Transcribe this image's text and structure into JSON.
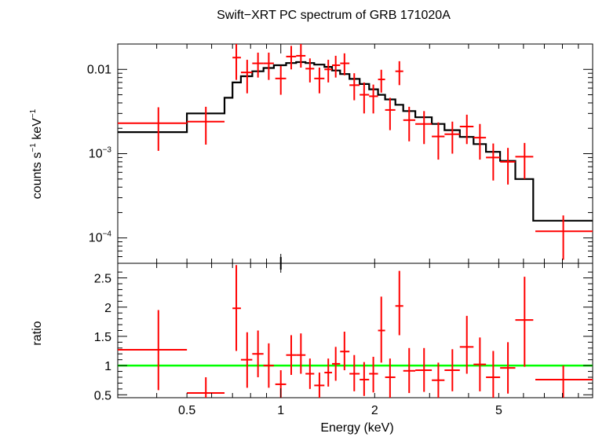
{
  "title": "Swift−XRT PC spectrum of GRB 171020A",
  "colors": {
    "data": "#ff0000",
    "model": "#000000",
    "unity": "#00ff00",
    "frame": "#000000"
  },
  "chart_data": [
    {
      "type": "scatter",
      "panel": "spectrum",
      "title": "Swift−XRT PC spectrum of GRB 171020A",
      "ylabel_main": "counts s",
      "ylabel_exp": "−1",
      "ylabel_mid": " keV",
      "ylabel_exp2": "−1",
      "xscale": "log",
      "yscale": "log",
      "xlim": [
        0.3,
        10.0
      ],
      "ylim": [
        5e-05,
        0.02
      ],
      "yticks": [
        {
          "value": 0.01,
          "base": "0.01",
          "exp": ""
        },
        {
          "value": 0.001,
          "base": "10",
          "exp": "−3"
        },
        {
          "value": 0.0001,
          "base": "10",
          "exp": "−4"
        }
      ],
      "series": [
        {
          "kind": "data-with-errors",
          "points": [
            {
              "x": 0.405,
              "xlo": 0.3,
              "xhi": 0.5,
              "y": 0.0023,
              "ylo": 0.00108,
              "yhi": 0.00355
            },
            {
              "x": 0.575,
              "xlo": 0.5,
              "xhi": 0.66,
              "y": 0.0024,
              "ylo": 0.00128,
              "yhi": 0.0036
            },
            {
              "x": 0.72,
              "xlo": 0.7,
              "xhi": 0.745,
              "y": 0.0138,
              "ylo": 0.0075,
              "yhi": 0.02
            },
            {
              "x": 0.78,
              "xlo": 0.745,
              "xhi": 0.81,
              "y": 0.0092,
              "ylo": 0.0052,
              "yhi": 0.013
            },
            {
              "x": 0.845,
              "xlo": 0.81,
              "xhi": 0.88,
              "y": 0.0118,
              "ylo": 0.008,
              "yhi": 0.0158
            },
            {
              "x": 0.915,
              "xlo": 0.88,
              "xhi": 0.95,
              "y": 0.0118,
              "ylo": 0.0075,
              "yhi": 0.0158
            },
            {
              "x": 1.0,
              "xlo": 0.96,
              "xhi": 1.04,
              "y": 0.0078,
              "ylo": 0.005,
              "yhi": 0.011
            },
            {
              "x": 1.08,
              "xlo": 1.04,
              "xhi": 1.12,
              "y": 0.0142,
              "ylo": 0.01,
              "yhi": 0.019
            },
            {
              "x": 1.16,
              "xlo": 1.12,
              "xhi": 1.2,
              "y": 0.0145,
              "ylo": 0.0105,
              "yhi": 0.02
            },
            {
              "x": 1.24,
              "xlo": 1.2,
              "xhi": 1.28,
              "y": 0.0102,
              "ylo": 0.007,
              "yhi": 0.0135
            },
            {
              "x": 1.33,
              "xlo": 1.28,
              "xhi": 1.38,
              "y": 0.0078,
              "ylo": 0.0052,
              "yhi": 0.0105
            },
            {
              "x": 1.42,
              "xlo": 1.38,
              "xhi": 1.46,
              "y": 0.01,
              "ylo": 0.007,
              "yhi": 0.013
            },
            {
              "x": 1.5,
              "xlo": 1.46,
              "xhi": 1.55,
              "y": 0.0112,
              "ylo": 0.008,
              "yhi": 0.0145
            },
            {
              "x": 1.6,
              "xlo": 1.55,
              "xhi": 1.66,
              "y": 0.0118,
              "ylo": 0.0085,
              "yhi": 0.0155
            },
            {
              "x": 1.72,
              "xlo": 1.66,
              "xhi": 1.79,
              "y": 0.0065,
              "ylo": 0.0043,
              "yhi": 0.009
            },
            {
              "x": 1.85,
              "xlo": 1.79,
              "xhi": 1.92,
              "y": 0.005,
              "ylo": 0.003,
              "yhi": 0.007
            },
            {
              "x": 1.98,
              "xlo": 1.92,
              "xhi": 2.05,
              "y": 0.0048,
              "ylo": 0.003,
              "yhi": 0.0066
            },
            {
              "x": 2.1,
              "xlo": 2.05,
              "xhi": 2.16,
              "y": 0.0076,
              "ylo": 0.0053,
              "yhi": 0.0099
            },
            {
              "x": 2.24,
              "xlo": 2.16,
              "xhi": 2.33,
              "y": 0.0033,
              "ylo": 0.0019,
              "yhi": 0.0046
            },
            {
              "x": 2.4,
              "xlo": 2.33,
              "xhi": 2.47,
              "y": 0.0095,
              "ylo": 0.0065,
              "yhi": 0.0125
            },
            {
              "x": 2.58,
              "xlo": 2.47,
              "xhi": 2.7,
              "y": 0.0025,
              "ylo": 0.0014,
              "yhi": 0.0036
            },
            {
              "x": 2.88,
              "xlo": 2.7,
              "xhi": 3.05,
              "y": 0.00225,
              "ylo": 0.0013,
              "yhi": 0.0032
            },
            {
              "x": 3.2,
              "xlo": 3.05,
              "xhi": 3.35,
              "y": 0.0016,
              "ylo": 0.00085,
              "yhi": 0.00235
            },
            {
              "x": 3.55,
              "xlo": 3.35,
              "xhi": 3.75,
              "y": 0.0017,
              "ylo": 0.001,
              "yhi": 0.0024
            },
            {
              "x": 3.95,
              "xlo": 3.75,
              "xhi": 4.15,
              "y": 0.0021,
              "ylo": 0.0013,
              "yhi": 0.0029
            },
            {
              "x": 4.35,
              "xlo": 4.15,
              "xhi": 4.55,
              "y": 0.00155,
              "ylo": 0.00085,
              "yhi": 0.00225
            },
            {
              "x": 4.8,
              "xlo": 4.55,
              "xhi": 5.05,
              "y": 0.0009,
              "ylo": 0.00048,
              "yhi": 0.00132
            },
            {
              "x": 5.35,
              "xlo": 5.05,
              "xhi": 5.65,
              "y": 0.0008,
              "ylo": 0.00043,
              "yhi": 0.00117
            },
            {
              "x": 6.05,
              "xlo": 5.65,
              "xhi": 6.45,
              "y": 0.00092,
              "ylo": 0.0005,
              "yhi": 0.00134
            },
            {
              "x": 8.05,
              "xlo": 6.55,
              "xhi": 10.0,
              "y": 0.00012,
              "ylo": 5.5e-05,
              "yhi": 0.000185
            }
          ]
        },
        {
          "kind": "model-step",
          "steps": [
            {
              "xlo": 0.3,
              "xhi": 0.5,
              "y": 0.0018
            },
            {
              "xlo": 0.5,
              "xhi": 0.66,
              "y": 0.003
            },
            {
              "xlo": 0.66,
              "xhi": 0.7,
              "y": 0.0046
            },
            {
              "xlo": 0.7,
              "xhi": 0.745,
              "y": 0.007
            },
            {
              "xlo": 0.745,
              "xhi": 0.81,
              "y": 0.0083
            },
            {
              "xlo": 0.81,
              "xhi": 0.88,
              "y": 0.0095
            },
            {
              "xlo": 0.88,
              "xhi": 0.95,
              "y": 0.0104
            },
            {
              "xlo": 0.95,
              "xhi": 1.04,
              "y": 0.0112
            },
            {
              "xlo": 1.04,
              "xhi": 1.12,
              "y": 0.0119
            },
            {
              "xlo": 1.12,
              "xhi": 1.2,
              "y": 0.0122
            },
            {
              "xlo": 1.2,
              "xhi": 1.28,
              "y": 0.0119
            },
            {
              "xlo": 1.28,
              "xhi": 1.38,
              "y": 0.0114
            },
            {
              "xlo": 1.38,
              "xhi": 1.46,
              "y": 0.0107
            },
            {
              "xlo": 1.46,
              "xhi": 1.55,
              "y": 0.0097
            },
            {
              "xlo": 1.55,
              "xhi": 1.66,
              "y": 0.0088
            },
            {
              "xlo": 1.66,
              "xhi": 1.79,
              "y": 0.0077
            },
            {
              "xlo": 1.79,
              "xhi": 1.92,
              "y": 0.0067
            },
            {
              "xlo": 1.92,
              "xhi": 2.05,
              "y": 0.0058
            },
            {
              "xlo": 2.05,
              "xhi": 2.16,
              "y": 0.005
            },
            {
              "xlo": 2.16,
              "xhi": 2.33,
              "y": 0.0044
            },
            {
              "xlo": 2.33,
              "xhi": 2.47,
              "y": 0.0038
            },
            {
              "xlo": 2.47,
              "xhi": 2.7,
              "y": 0.0032
            },
            {
              "xlo": 2.7,
              "xhi": 3.05,
              "y": 0.0027
            },
            {
              "xlo": 3.05,
              "xhi": 3.35,
              "y": 0.00225
            },
            {
              "xlo": 3.35,
              "xhi": 3.75,
              "y": 0.0019
            },
            {
              "xlo": 3.75,
              "xhi": 4.15,
              "y": 0.00158
            },
            {
              "xlo": 4.15,
              "xhi": 4.55,
              "y": 0.0013
            },
            {
              "xlo": 4.55,
              "xhi": 5.05,
              "y": 0.00105
            },
            {
              "xlo": 5.05,
              "xhi": 5.65,
              "y": 0.00082
            },
            {
              "xlo": 5.65,
              "xhi": 6.45,
              "y": 0.0005
            },
            {
              "xlo": 6.45,
              "xhi": 10.0,
              "y": 0.00016
            }
          ]
        }
      ]
    },
    {
      "type": "scatter",
      "panel": "ratio",
      "ylabel": "ratio",
      "xlabel": "Energy (keV)",
      "xscale": "log",
      "yscale": "linear",
      "xlim": [
        0.3,
        10.0
      ],
      "ylim": [
        0.45,
        2.75
      ],
      "yticks": [
        "0.5",
        "1",
        "1.5",
        "2",
        "2.5"
      ],
      "xticks": [
        "0.5",
        "1",
        "2",
        "5"
      ],
      "reference_line": 1.0,
      "points": [
        {
          "x": 0.405,
          "xlo": 0.3,
          "xhi": 0.5,
          "y": 1.27,
          "ylo": 0.58,
          "yhi": 1.95
        },
        {
          "x": 0.575,
          "xlo": 0.5,
          "xhi": 0.66,
          "y": 0.53,
          "ylo": 0.45,
          "yhi": 0.8
        },
        {
          "x": 0.72,
          "xlo": 0.7,
          "xhi": 0.745,
          "y": 1.98,
          "ylo": 1.25,
          "yhi": 2.72
        },
        {
          "x": 0.78,
          "xlo": 0.745,
          "xhi": 0.81,
          "y": 1.1,
          "ylo": 0.62,
          "yhi": 1.57
        },
        {
          "x": 0.845,
          "xlo": 0.81,
          "xhi": 0.88,
          "y": 1.2,
          "ylo": 0.8,
          "yhi": 1.6
        },
        {
          "x": 0.915,
          "xlo": 0.88,
          "xhi": 0.95,
          "y": 1.0,
          "ylo": 0.62,
          "yhi": 1.38
        },
        {
          "x": 1.0,
          "xlo": 0.96,
          "xhi": 1.04,
          "y": 0.68,
          "ylo": 0.45,
          "yhi": 0.92
        },
        {
          "x": 1.08,
          "xlo": 1.04,
          "xhi": 1.12,
          "y": 1.18,
          "ylo": 0.84,
          "yhi": 1.52
        },
        {
          "x": 1.16,
          "xlo": 1.12,
          "xhi": 1.2,
          "y": 1.18,
          "ylo": 0.86,
          "yhi": 1.55
        },
        {
          "x": 1.24,
          "xlo": 1.2,
          "xhi": 1.28,
          "y": 0.86,
          "ylo": 0.6,
          "yhi": 1.12
        },
        {
          "x": 1.33,
          "xlo": 1.28,
          "xhi": 1.38,
          "y": 0.66,
          "ylo": 0.45,
          "yhi": 0.88
        },
        {
          "x": 1.42,
          "xlo": 1.38,
          "xhi": 1.46,
          "y": 0.88,
          "ylo": 0.64,
          "yhi": 1.12
        },
        {
          "x": 1.5,
          "xlo": 1.46,
          "xhi": 1.55,
          "y": 1.03,
          "ylo": 0.74,
          "yhi": 1.32
        },
        {
          "x": 1.6,
          "xlo": 1.55,
          "xhi": 1.66,
          "y": 1.24,
          "ylo": 0.92,
          "yhi": 1.58
        },
        {
          "x": 1.72,
          "xlo": 1.66,
          "xhi": 1.79,
          "y": 0.86,
          "ylo": 0.56,
          "yhi": 1.18
        },
        {
          "x": 1.85,
          "xlo": 1.79,
          "xhi": 1.92,
          "y": 0.76,
          "ylo": 0.48,
          "yhi": 1.06
        },
        {
          "x": 1.98,
          "xlo": 1.92,
          "xhi": 2.05,
          "y": 0.86,
          "ylo": 0.54,
          "yhi": 1.15
        },
        {
          "x": 2.1,
          "xlo": 2.05,
          "xhi": 2.16,
          "y": 1.6,
          "ylo": 1.05,
          "yhi": 2.18
        },
        {
          "x": 2.24,
          "xlo": 2.16,
          "xhi": 2.33,
          "y": 0.8,
          "ylo": 0.45,
          "yhi": 1.12
        },
        {
          "x": 2.4,
          "xlo": 2.33,
          "xhi": 2.47,
          "y": 2.02,
          "ylo": 1.52,
          "yhi": 2.62
        },
        {
          "x": 2.58,
          "xlo": 2.47,
          "xhi": 2.7,
          "y": 0.91,
          "ylo": 0.53,
          "yhi": 1.3
        },
        {
          "x": 2.88,
          "xlo": 2.7,
          "xhi": 3.05,
          "y": 0.92,
          "ylo": 0.55,
          "yhi": 1.3
        },
        {
          "x": 3.2,
          "xlo": 3.05,
          "xhi": 3.35,
          "y": 0.75,
          "ylo": 0.45,
          "yhi": 1.05
        },
        {
          "x": 3.55,
          "xlo": 3.35,
          "xhi": 3.75,
          "y": 0.92,
          "ylo": 0.56,
          "yhi": 1.28
        },
        {
          "x": 3.95,
          "xlo": 3.75,
          "xhi": 4.15,
          "y": 1.32,
          "ylo": 0.86,
          "yhi": 1.85
        },
        {
          "x": 4.35,
          "xlo": 4.15,
          "xhi": 4.55,
          "y": 1.02,
          "ylo": 0.56,
          "yhi": 1.48
        },
        {
          "x": 4.8,
          "xlo": 4.55,
          "xhi": 5.05,
          "y": 0.8,
          "ylo": 0.45,
          "yhi": 1.25
        },
        {
          "x": 5.35,
          "xlo": 5.05,
          "xhi": 5.65,
          "y": 0.96,
          "ylo": 0.52,
          "yhi": 1.4
        },
        {
          "x": 6.05,
          "xlo": 5.65,
          "xhi": 6.45,
          "y": 1.78,
          "ylo": 0.98,
          "yhi": 2.52
        },
        {
          "x": 8.05,
          "xlo": 6.55,
          "xhi": 10.0,
          "y": 0.76,
          "ylo": 0.45,
          "yhi": 1.0
        }
      ]
    }
  ]
}
